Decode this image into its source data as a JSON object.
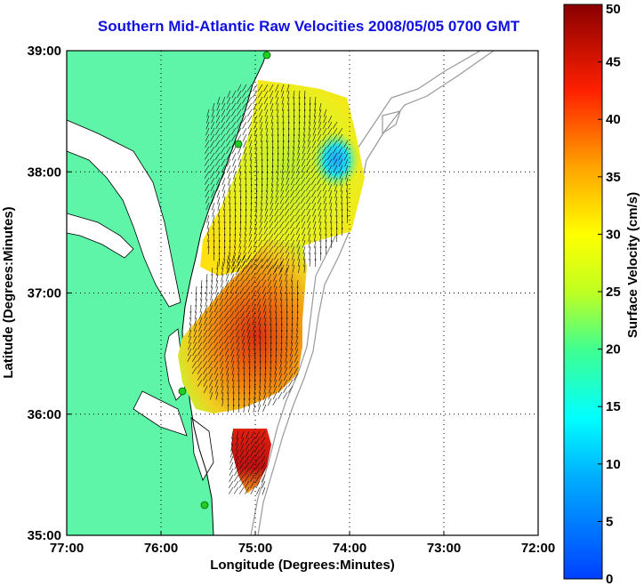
{
  "chart_data": {
    "type": "heatmap",
    "title": "Southern Mid-Atlantic Raw Velocities 2008/05/05 0700 GMT",
    "xlabel": "Longitude (Degrees:Minutes)",
    "ylabel": "Latitude (Degrees:Minutes)",
    "x_ticks": [
      "77:00",
      "76:00",
      "75:00",
      "74:00",
      "73:00",
      "72:00"
    ],
    "y_ticks": [
      "39:00",
      "38:00",
      "37:00",
      "36:00",
      "35:00"
    ],
    "xlim": [
      -77,
      -72
    ],
    "ylim": [
      35,
      39
    ],
    "grid": "dotted",
    "colorbar": {
      "label": "Surface Velocity (cm/s)",
      "range": [
        0,
        50
      ],
      "ticks": [
        "50",
        "45",
        "40",
        "35",
        "30",
        "25",
        "20",
        "15",
        "10",
        "5",
        "0"
      ],
      "colormap": "jet"
    },
    "land_color": "#5ef5a8",
    "station_color": "#22cc22"
  }
}
